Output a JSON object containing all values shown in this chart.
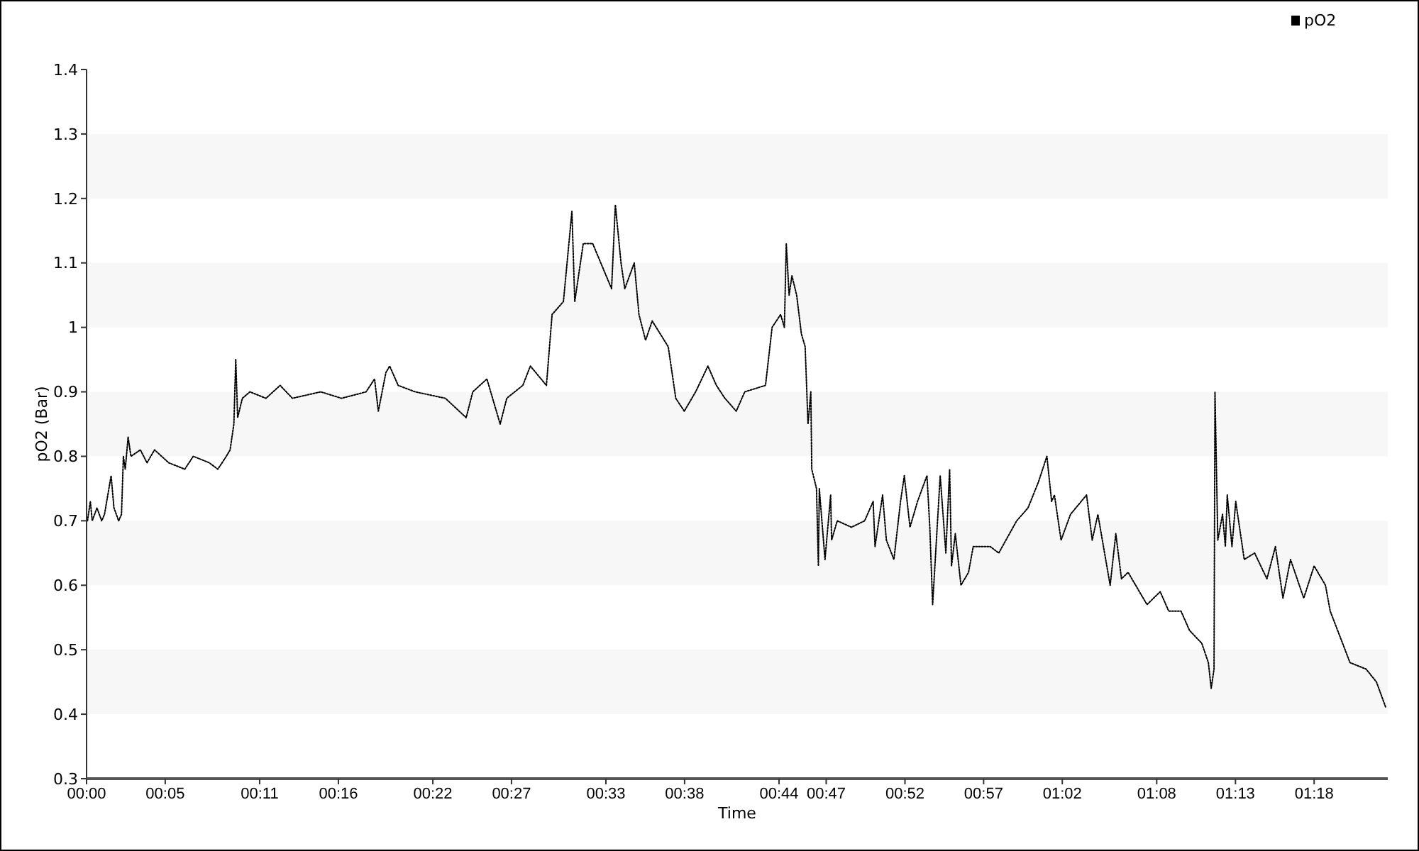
{
  "chart_data": {
    "type": "line",
    "xlabel": "Time",
    "ylabel": "pO2 (Bar)",
    "x": [
      0.001,
      0.004,
      0.006,
      0.011,
      0.016,
      0.019,
      0.026,
      0.029,
      0.034,
      0.037,
      0.039,
      0.041,
      0.044,
      0.047,
      0.057,
      0.064,
      0.072,
      0.087,
      0.104,
      0.113,
      0.13,
      0.139,
      0.148,
      0.152,
      0.156,
      0.158,
      0.16,
      0.165,
      0.173,
      0.19,
      0.205,
      0.218,
      0.248,
      0.27,
      0.296,
      0.305,
      0.309,
      0.317,
      0.321,
      0.33,
      0.348,
      0.38,
      0.402,
      0.409,
      0.424,
      0.438,
      0.445,
      0.462,
      0.47,
      0.487,
      0.493,
      0.505,
      0.514,
      0.517,
      0.526,
      0.536,
      0.556,
      0.56,
      0.566,
      0.57,
      0.58,
      0.585,
      0.592,
      0.599,
      0.616,
      0.624,
      0.633,
      0.645,
      0.658,
      0.667,
      0.676,
      0.688,
      0.697,
      0.719,
      0.726,
      0.735,
      0.739,
      0.741,
      0.744,
      0.747,
      0.752,
      0.757,
      0.761,
      0.764,
      0.767,
      0.768,
      0.773,
      0.775,
      0.776,
      0.782,
      0.788,
      0.789,
      0.795,
      0.81,
      0.824,
      0.833,
      0.835,
      0.843,
      0.847,
      0.855,
      0.862,
      0.866,
      0.872,
      0.88,
      0.89,
      0.893,
      0.896,
      0.904,
      0.91,
      0.914,
      0.916,
      0.92,
      0.926,
      0.934,
      0.939,
      0.957,
      0.966,
      0.985,
      0.997,
      1.008,
      1.017,
      1.022,
      1.025,
      1.032,
      1.042,
      1.059,
      1.065,
      1.071,
      1.084,
      1.09,
      1.096,
      1.103,
      1.123,
      1.137,
      1.146,
      1.159,
      1.168,
      1.181,
      1.188,
      1.191,
      1.194,
      1.195,
      1.198,
      1.203,
      1.206,
      1.208,
      1.213,
      1.217,
      1.226,
      1.237,
      1.25,
      1.259,
      1.267,
      1.275,
      1.289,
      1.3,
      1.312,
      1.317,
      1.338,
      1.355,
      1.366,
      1.376
    ],
    "series": [
      {
        "name": "pO2",
        "color": "#000000",
        "values": [
          0.7,
          0.73,
          0.7,
          0.72,
          0.7,
          0.71,
          0.77,
          0.72,
          0.7,
          0.71,
          0.8,
          0.78,
          0.83,
          0.8,
          0.81,
          0.79,
          0.81,
          0.79,
          0.78,
          0.8,
          0.79,
          0.78,
          0.8,
          0.81,
          0.85,
          0.95,
          0.86,
          0.89,
          0.9,
          0.89,
          0.91,
          0.89,
          0.9,
          0.89,
          0.9,
          0.92,
          0.87,
          0.93,
          0.94,
          0.91,
          0.9,
          0.89,
          0.86,
          0.9,
          0.92,
          0.85,
          0.89,
          0.91,
          0.94,
          0.91,
          1.02,
          1.04,
          1.18,
          1.04,
          1.13,
          1.13,
          1.06,
          1.19,
          1.1,
          1.06,
          1.1,
          1.02,
          0.98,
          1.01,
          0.97,
          0.89,
          0.87,
          0.9,
          0.94,
          0.91,
          0.89,
          0.87,
          0.9,
          0.91,
          1.0,
          1.02,
          1.0,
          1.13,
          1.05,
          1.08,
          1.05,
          0.99,
          0.97,
          0.85,
          0.9,
          0.78,
          0.75,
          0.63,
          0.75,
          0.64,
          0.74,
          0.67,
          0.7,
          0.69,
          0.7,
          0.73,
          0.66,
          0.74,
          0.67,
          0.64,
          0.73,
          0.77,
          0.69,
          0.73,
          0.77,
          0.69,
          0.57,
          0.77,
          0.65,
          0.78,
          0.63,
          0.68,
          0.6,
          0.62,
          0.66,
          0.66,
          0.65,
          0.7,
          0.72,
          0.76,
          0.8,
          0.73,
          0.74,
          0.67,
          0.71,
          0.74,
          0.67,
          0.71,
          0.6,
          0.68,
          0.61,
          0.62,
          0.57,
          0.59,
          0.56,
          0.56,
          0.53,
          0.51,
          0.48,
          0.44,
          0.47,
          0.9,
          0.67,
          0.71,
          0.66,
          0.74,
          0.66,
          0.73,
          0.64,
          0.65,
          0.61,
          0.66,
          0.58,
          0.64,
          0.58,
          0.63,
          0.6,
          0.56,
          0.48,
          0.47,
          0.45,
          0.41
        ]
      }
    ],
    "xlim": [
      0,
      1.378
    ],
    "xticks": [
      {
        "value": 0,
        "label": "00:00"
      },
      {
        "value": 0.0833,
        "label": "00:05"
      },
      {
        "value": 0.1833,
        "label": "00:11"
      },
      {
        "value": 0.2667,
        "label": "00:16"
      },
      {
        "value": 0.3667,
        "label": "00:22"
      },
      {
        "value": 0.45,
        "label": "00:27"
      },
      {
        "value": 0.55,
        "label": "00:33"
      },
      {
        "value": 0.6333,
        "label": "00:38"
      },
      {
        "value": 0.7333,
        "label": "00:44"
      },
      {
        "value": 0.7833,
        "label": "00:47"
      },
      {
        "value": 0.8667,
        "label": "00:52"
      },
      {
        "value": 0.95,
        "label": "00:57"
      },
      {
        "value": 1.0333,
        "label": "01:02"
      },
      {
        "value": 1.1333,
        "label": "01:08"
      },
      {
        "value": 1.2167,
        "label": "01:13"
      },
      {
        "value": 1.3,
        "label": "01:18"
      }
    ],
    "ylim": [
      0.3,
      1.4
    ],
    "yticks": [
      {
        "value": 0.3,
        "label": "0.3"
      },
      {
        "value": 0.4,
        "label": "0.4"
      },
      {
        "value": 0.5,
        "label": "0.5"
      },
      {
        "value": 0.6,
        "label": "0.6"
      },
      {
        "value": 0.7,
        "label": "0.7"
      },
      {
        "value": 0.8,
        "label": "0.8"
      },
      {
        "value": 0.9,
        "label": "0.9"
      },
      {
        "value": 1.0,
        "label": "1"
      },
      {
        "value": 1.1,
        "label": "1.1"
      },
      {
        "value": 1.2,
        "label": "1.2"
      },
      {
        "value": 1.3,
        "label": "1.3"
      },
      {
        "value": 1.4,
        "label": "1.4"
      }
    ],
    "bands": [
      {
        "axis": "y",
        "from": 0.4,
        "to": 0.5,
        "color": "#f7f7f7"
      },
      {
        "axis": "y",
        "from": 0.6,
        "to": 0.7,
        "color": "#f7f7f7"
      },
      {
        "axis": "y",
        "from": 0.8,
        "to": 0.9,
        "color": "#f7f7f7"
      },
      {
        "axis": "y",
        "from": 1.0,
        "to": 1.1,
        "color": "#f7f7f7"
      },
      {
        "axis": "y",
        "from": 1.2,
        "to": 1.3,
        "color": "#f7f7f7"
      }
    ],
    "legend": "top right",
    "line_style": "dotted",
    "marker": "none"
  }
}
